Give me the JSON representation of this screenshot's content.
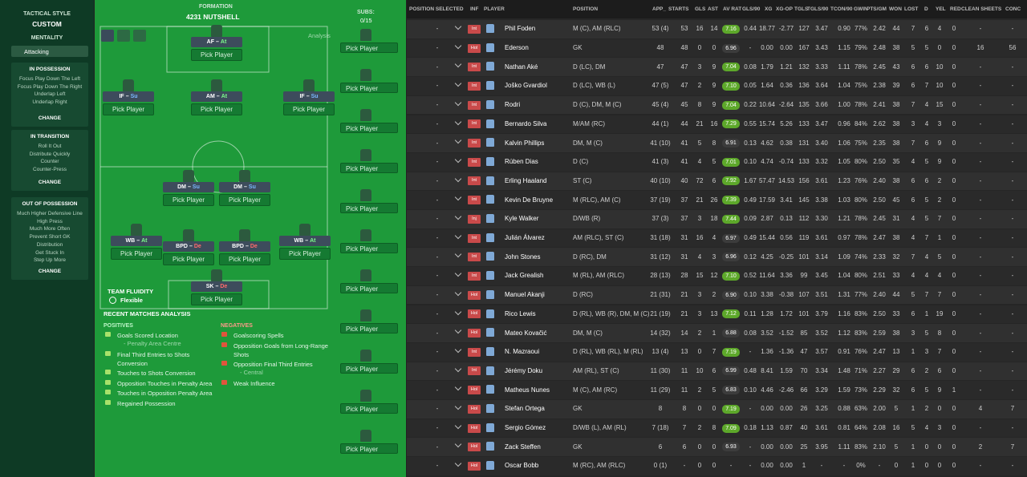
{
  "left_panel": {
    "tactical_style_label": "TACTICAL STYLE",
    "tactical_style": "CUSTOM",
    "mentality_label": "MENTALITY",
    "mentality": "Attacking",
    "sections": [
      {
        "title": "IN POSSESSION",
        "items": [
          "Focus Play Down The Left",
          "Focus Play Down The Right",
          "Underlap Left",
          "Underlap Right"
        ],
        "button": "CHANGE"
      },
      {
        "title": "IN TRANSITION",
        "items": [
          "Roll It Out",
          "Distribute Quickly",
          "Counter",
          "Counter-Press"
        ],
        "button": "CHANGE"
      },
      {
        "title": "OUT OF POSSESSION",
        "items": [
          "Much Higher Defensive Line",
          "High Press",
          "Much More Often",
          "Prevent Short GK",
          "Distribution",
          "Get Stuck In",
          "Step Up More"
        ],
        "button": "CHANGE"
      }
    ]
  },
  "tactic": {
    "formation_label": "FORMATION",
    "formation": "4231 NUTSHELL",
    "analysis": "Analysis",
    "subs_label": "SUBS:",
    "subs_count": "0/15",
    "pick_player": "Pick Player",
    "positions": [
      {
        "role": "AF",
        "duty": "At",
        "duty_color": "#7CFC8C"
      },
      {
        "role": "IF",
        "duty": "Su",
        "duty_color": "#7ab8ff"
      },
      {
        "role": "AM",
        "duty": "At",
        "duty_color": "#7CFC8C"
      },
      {
        "role": "IF",
        "duty": "Su",
        "duty_color": "#7ab8ff"
      },
      {
        "role": "DM",
        "duty": "Su",
        "duty_color": "#7ab8ff"
      },
      {
        "role": "DM",
        "duty": "Su",
        "duty_color": "#7ab8ff"
      },
      {
        "role": "WB",
        "duty": "At",
        "duty_color": "#7CFC8C"
      },
      {
        "role": "BPD",
        "duty": "De",
        "duty_color": "#ff6b6b"
      },
      {
        "role": "BPD",
        "duty": "De",
        "duty_color": "#ff6b6b"
      },
      {
        "role": "WB",
        "duty": "At",
        "duty_color": "#7CFC8C"
      },
      {
        "role": "SK",
        "duty": "De",
        "duty_color": "#ff6b6b"
      }
    ],
    "team_fluidity_label": "TEAM FLUIDITY",
    "team_fluidity": "Flexible"
  },
  "analysis": {
    "title": "RECENT MATCHES ANALYSIS",
    "positives_title": "POSITIVES",
    "positives": [
      {
        "text": "Goals Scored Location",
        "detail": "- Penalty Area Centre"
      },
      {
        "text": "Final Third Entries to Shots Conversion"
      },
      {
        "text": "Touches to Shots Conversion"
      },
      {
        "text": "Opposition Touches in Penalty Area"
      },
      {
        "text": "Touches in Opposition Penalty Area"
      },
      {
        "text": "Regained Possession"
      }
    ],
    "negatives_title": "NEGATIVES",
    "negatives": [
      {
        "text": "Goalscoring Spells"
      },
      {
        "text": "Opposition Goals from Long-Range Shots"
      },
      {
        "text": "Opposition Final Third Entries",
        "detail": "- Central"
      },
      {
        "text": "Weak Influence"
      }
    ]
  },
  "table": {
    "columns": [
      "POSITION SELECTED",
      "INF",
      "PLAYER",
      "POSITION",
      "APP_",
      "STARTS",
      "GLS",
      "AST",
      "AV RAT",
      "GLS/90",
      "XG",
      "XG-OP",
      "TGLS",
      "TGLS/90",
      "TCON/90",
      "GWIN",
      "PTS/GM",
      "WON",
      "LOST",
      "D",
      "YEL",
      "RED",
      "CLEAN SHEETS",
      "CONC"
    ],
    "rows": [
      [
        "-",
        "Int",
        "Phil Foden",
        "M (C), AM (RLC)",
        "53 (4)",
        "53",
        "16",
        "14",
        "7.16",
        "0.44",
        "18.77",
        "-2.77",
        "127",
        "3.47",
        "0.90",
        "77%",
        "2.42",
        "44",
        "7",
        "6",
        "4",
        "0",
        "-",
        "-"
      ],
      [
        "-",
        "Hol",
        "Ederson",
        "GK",
        "48",
        "48",
        "0",
        "0",
        "6.96",
        "-",
        "0.00",
        "0.00",
        "167",
        "3.43",
        "1.15",
        "79%",
        "2.48",
        "38",
        "5",
        "5",
        "0",
        "0",
        "16",
        "56"
      ],
      [
        "-",
        "Int",
        "Nathan Aké",
        "D (LC), DM",
        "47",
        "47",
        "3",
        "9",
        "7.04",
        "0.08",
        "1.79",
        "1.21",
        "132",
        "3.33",
        "1.11",
        "78%",
        "2.45",
        "43",
        "6",
        "6",
        "10",
        "0",
        "-",
        "-"
      ],
      [
        "-",
        "Int",
        "Joško Gvardiol",
        "D (LC), WB (L)",
        "47 (5)",
        "47",
        "2",
        "9",
        "7.10",
        "0.05",
        "1.64",
        "0.36",
        "136",
        "3.64",
        "1.04",
        "75%",
        "2.38",
        "39",
        "6",
        "7",
        "10",
        "0",
        "-",
        "-"
      ],
      [
        "-",
        "Int",
        "Rodri",
        "D (C), DM, M (C)",
        "45 (4)",
        "45",
        "8",
        "9",
        "7.04",
        "0.22",
        "10.64",
        "-2.64",
        "135",
        "3.66",
        "1.00",
        "78%",
        "2.41",
        "38",
        "7",
        "4",
        "15",
        "0",
        "-",
        "-"
      ],
      [
        "-",
        "Int",
        "Bernardo Silva",
        "M/AM (RC)",
        "44 (1)",
        "44",
        "21",
        "16",
        "7.29",
        "0.55",
        "15.74",
        "5.26",
        "133",
        "3.47",
        "0.96",
        "84%",
        "2.62",
        "38",
        "3",
        "4",
        "3",
        "0",
        "-",
        "-"
      ],
      [
        "-",
        "Int",
        "Kalvin Phillips",
        "DM, M (C)",
        "41 (10)",
        "41",
        "5",
        "8",
        "6.91",
        "0.13",
        "4.62",
        "0.38",
        "131",
        "3.40",
        "1.06",
        "75%",
        "2.35",
        "38",
        "7",
        "6",
        "9",
        "0",
        "-",
        "-"
      ],
      [
        "-",
        "Int",
        "Rúben Dias",
        "D (C)",
        "41 (3)",
        "41",
        "4",
        "5",
        "7.01",
        "0.10",
        "4.74",
        "-0.74",
        "133",
        "3.32",
        "1.05",
        "80%",
        "2.50",
        "35",
        "4",
        "5",
        "9",
        "0",
        "-",
        "-"
      ],
      [
        "-",
        "Int",
        "Erling Haaland",
        "ST (C)",
        "40 (10)",
        "40",
        "72",
        "6",
        "7.92",
        "1.67",
        "57.47",
        "14.53",
        "156",
        "3.61",
        "1.23",
        "76%",
        "2.40",
        "38",
        "6",
        "6",
        "2",
        "0",
        "-",
        "-"
      ],
      [
        "-",
        "Int",
        "Kevin De Bruyne",
        "M (RLC), AM (C)",
        "37 (19)",
        "37",
        "21",
        "26",
        "7.39",
        "0.49",
        "17.59",
        "3.41",
        "145",
        "3.38",
        "1.03",
        "80%",
        "2.50",
        "45",
        "6",
        "5",
        "2",
        "0",
        "-",
        "-"
      ],
      [
        "-",
        "Inj",
        "Kyle Walker",
        "D/WB (R)",
        "37 (3)",
        "37",
        "3",
        "18",
        "7.44",
        "0.09",
        "2.87",
        "0.13",
        "112",
        "3.30",
        "1.21",
        "78%",
        "2.45",
        "31",
        "4",
        "5",
        "7",
        "0",
        "-",
        "-"
      ],
      [
        "-",
        "Int",
        "Julián Álvarez",
        "AM (RLC), ST (C)",
        "31 (18)",
        "31",
        "16",
        "4",
        "6.97",
        "0.49",
        "15.44",
        "0.56",
        "119",
        "3.61",
        "0.97",
        "78%",
        "2.47",
        "38",
        "4",
        "7",
        "1",
        "0",
        "-",
        "-"
      ],
      [
        "-",
        "Int",
        "John Stones",
        "D (RC), DM",
        "31 (12)",
        "31",
        "4",
        "3",
        "6.96",
        "0.12",
        "4.25",
        "-0.25",
        "101",
        "3.14",
        "1.09",
        "74%",
        "2.33",
        "32",
        "7",
        "4",
        "5",
        "0",
        "-",
        "-"
      ],
      [
        "-",
        "Int",
        "Jack Grealish",
        "M (RL), AM (RLC)",
        "28 (13)",
        "28",
        "15",
        "12",
        "7.10",
        "0.52",
        "11.64",
        "3.36",
        "99",
        "3.45",
        "1.04",
        "80%",
        "2.51",
        "33",
        "4",
        "4",
        "4",
        "0",
        "-",
        "-"
      ],
      [
        "-",
        "Hol",
        "Manuel Akanji",
        "D (RC)",
        "21 (31)",
        "21",
        "3",
        "2",
        "6.90",
        "0.10",
        "3.38",
        "-0.38",
        "107",
        "3.51",
        "1.31",
        "77%",
        "2.40",
        "44",
        "5",
        "7",
        "7",
        "0",
        "-",
        "-"
      ],
      [
        "-",
        "Hol",
        "Rico Lewis",
        "D (RL), WB (R), DM, M (C)",
        "21 (19)",
        "21",
        "3",
        "13",
        "7.12",
        "0.11",
        "1.28",
        "1.72",
        "101",
        "3.79",
        "1.16",
        "83%",
        "2.50",
        "33",
        "6",
        "1",
        "19",
        "0",
        "-",
        "-"
      ],
      [
        "-",
        "Hol",
        "Mateo Kovačić",
        "DM, M (C)",
        "14 (32)",
        "14",
        "2",
        "1",
        "6.88",
        "0.08",
        "3.52",
        "-1.52",
        "85",
        "3.52",
        "1.12",
        "83%",
        "2.59",
        "38",
        "3",
        "5",
        "8",
        "0",
        "-",
        "-"
      ],
      [
        "-",
        "Int",
        "N. Mazraoui",
        "D (RL), WB (RL), M (RL)",
        "13 (4)",
        "13",
        "0",
        "7",
        "7.19",
        "-",
        "1.36",
        "-1.36",
        "47",
        "3.57",
        "0.91",
        "76%",
        "2.47",
        "13",
        "1",
        "3",
        "7",
        "0",
        "-",
        "-"
      ],
      [
        "-",
        "Int",
        "Jérémy Doku",
        "AM (RL), ST (C)",
        "11 (30)",
        "11",
        "10",
        "6",
        "6.99",
        "0.48",
        "8.41",
        "1.59",
        "70",
        "3.34",
        "1.48",
        "71%",
        "2.27",
        "29",
        "6",
        "2",
        "6",
        "0",
        "-",
        "-"
      ],
      [
        "-",
        "Hol",
        "Matheus Nunes",
        "M (C), AM (RC)",
        "11 (29)",
        "11",
        "2",
        "5",
        "6.83",
        "0.10",
        "4.46",
        "-2.46",
        "66",
        "3.29",
        "1.59",
        "73%",
        "2.29",
        "32",
        "6",
        "5",
        "9",
        "1",
        "-",
        "-"
      ],
      [
        "-",
        "Hol",
        "Stefan Ortega",
        "GK",
        "8",
        "8",
        "0",
        "0",
        "7.19",
        "-",
        "0.00",
        "0.00",
        "26",
        "3.25",
        "0.88",
        "63%",
        "2.00",
        "5",
        "1",
        "2",
        "0",
        "0",
        "4",
        "7"
      ],
      [
        "-",
        "Hol",
        "Sergio Gómez",
        "D/WB (L), AM (RL)",
        "7 (18)",
        "7",
        "2",
        "8",
        "7.09",
        "0.18",
        "1.13",
        "0.87",
        "40",
        "3.61",
        "0.81",
        "64%",
        "2.08",
        "16",
        "5",
        "4",
        "3",
        "0",
        "-",
        "-"
      ],
      [
        "-",
        "Hol",
        "Zack Steffen",
        "GK",
        "6",
        "6",
        "0",
        "0",
        "6.93",
        "-",
        "0.00",
        "0.00",
        "25",
        "3.95",
        "1.11",
        "83%",
        "2.10",
        "5",
        "1",
        "0",
        "0",
        "0",
        "2",
        "7"
      ],
      [
        "-",
        "Hol",
        "Oscar Bobb",
        "M (RC), AM (RLC)",
        "0 (1)",
        "-",
        "0",
        "0",
        "-",
        "-",
        "0.00",
        "0.00",
        "1",
        "-",
        "-",
        "0%",
        "-",
        "0",
        "1",
        "0",
        "0",
        "0",
        "-",
        "-"
      ]
    ]
  }
}
